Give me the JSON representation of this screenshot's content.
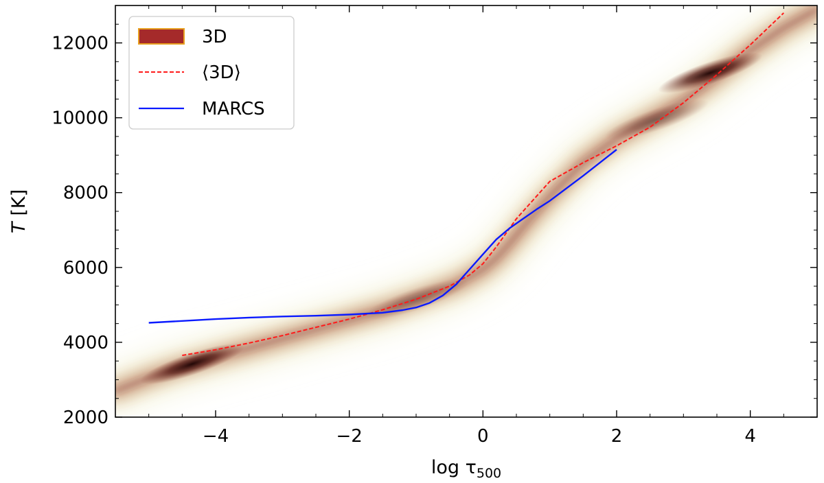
{
  "chart_data": {
    "type": "line",
    "xlabel_main": "log τ",
    "xlabel_sub": "500",
    "ylabel_italic": "T",
    "ylabel_unit": "[K]",
    "xlim": [
      -5.5,
      5.0
    ],
    "ylim": [
      2000,
      13000
    ],
    "xticks": [
      -4,
      -2,
      0,
      2,
      4
    ],
    "xtick_labels": [
      "−4",
      "−2",
      "0",
      "2",
      "4"
    ],
    "yticks": [
      2000,
      4000,
      6000,
      8000,
      10000,
      12000
    ],
    "ytick_labels": [
      "2000",
      "4000",
      "6000",
      "8000",
      "10000",
      "12000"
    ],
    "legend_position": "top-left",
    "series": [
      {
        "name": "3D",
        "kind": "density",
        "fill_color": "#a52a2a",
        "edge_color": "#e8a020",
        "ridge": {
          "x": [
            -5.5,
            -5.0,
            -4.6,
            -4.3,
            -4.0,
            -3.5,
            -3.0,
            -2.5,
            -2.0,
            -1.5,
            -1.0,
            -0.7,
            -0.4,
            -0.2,
            0.0,
            0.2,
            0.4,
            0.7,
            1.0,
            1.5,
            2.0,
            2.5,
            3.0,
            3.5,
            4.0,
            4.5,
            5.0
          ],
          "y": [
            2700,
            3050,
            3300,
            3450,
            3600,
            3850,
            4100,
            4350,
            4600,
            4850,
            5150,
            5350,
            5550,
            5750,
            5950,
            6250,
            6650,
            7300,
            7900,
            8800,
            9450,
            9950,
            10450,
            11100,
            11800,
            12400,
            12900
          ]
        },
        "hotspots": [
          {
            "x": -4.35,
            "y": 3420,
            "strength": 1.0
          },
          {
            "x": 3.4,
            "y": 11200,
            "strength": 1.0
          },
          {
            "x": -1.0,
            "y": 5150,
            "strength": 0.35
          },
          {
            "x": 2.6,
            "y": 9950,
            "strength": 0.45
          }
        ]
      },
      {
        "name": "⟨3D⟩",
        "kind": "dashed-line",
        "color": "#ff1a1a",
        "x": [
          -4.5,
          -4.0,
          -3.5,
          -3.0,
          -2.5,
          -2.0,
          -1.5,
          -1.0,
          -0.5,
          -0.2,
          0.0,
          0.2,
          0.5,
          1.0,
          1.5,
          2.0,
          2.5,
          3.0,
          3.5,
          4.0,
          4.5
        ],
        "y": [
          3650,
          3800,
          3980,
          4180,
          4400,
          4620,
          4870,
          5150,
          5500,
          5800,
          6100,
          6550,
          7300,
          8300,
          8800,
          9250,
          9750,
          10400,
          11150,
          11950,
          12800
        ]
      },
      {
        "name": "MARCS",
        "kind": "solid-line",
        "color": "#0a1aff",
        "x": [
          -5.0,
          -4.5,
          -4.0,
          -3.5,
          -3.0,
          -2.5,
          -2.0,
          -1.5,
          -1.2,
          -1.0,
          -0.8,
          -0.6,
          -0.4,
          -0.2,
          0.0,
          0.2,
          0.4,
          0.6,
          0.8,
          1.0,
          1.5,
          2.0
        ],
        "y": [
          4520,
          4570,
          4620,
          4660,
          4690,
          4710,
          4740,
          4790,
          4860,
          4930,
          5050,
          5250,
          5550,
          5950,
          6350,
          6750,
          7050,
          7300,
          7550,
          7780,
          8450,
          9150
        ]
      }
    ]
  }
}
